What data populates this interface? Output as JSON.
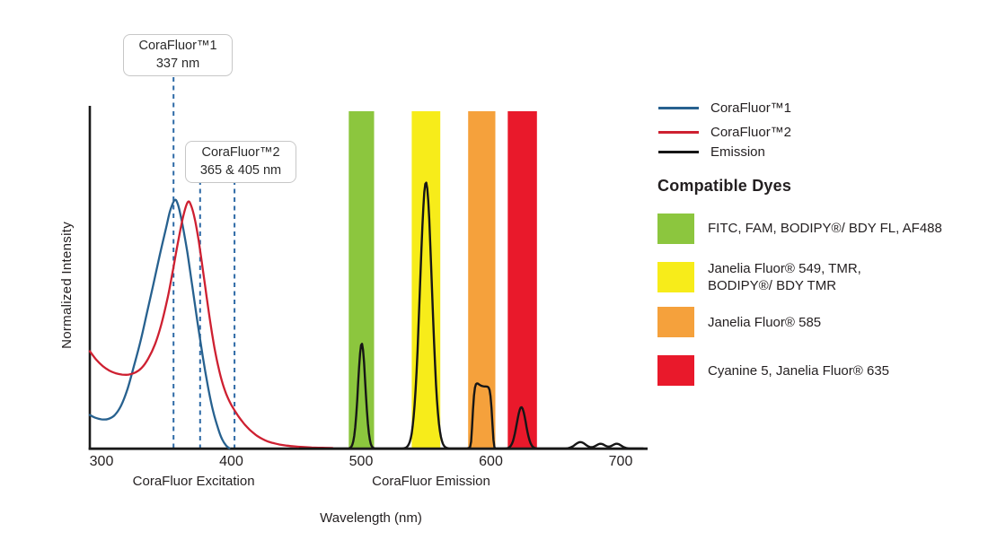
{
  "chart_data": {
    "type": "line",
    "title": "",
    "xlabel": "Wavelength (nm)",
    "ylabel": "Normalized Intensity",
    "x_ticks": [
      300,
      400,
      500,
      600,
      700
    ],
    "xlim": [
      291,
      719
    ],
    "ylim": [
      0,
      1
    ],
    "grid": false,
    "x_section_labels": [
      {
        "label": "CoraFluor Excitation",
        "center_nm": 371
      },
      {
        "label": "CoraFluor Emission",
        "center_nm": 554
      }
    ],
    "annotations": [
      {
        "title": "CoraFluor™1",
        "subtitle": "337 nm",
        "dashed_lines_nm": [
          355.5
        ]
      },
      {
        "title": "CoraFluor™2",
        "subtitle": "365 & 405 nm",
        "dashed_lines_nm": [
          376,
          402.5
        ]
      }
    ],
    "dashed_line_color": "#2E6AA6",
    "filter_bands": [
      {
        "name": "green-band",
        "color": "#8CC63E",
        "range_nm": [
          490.5,
          510
        ]
      },
      {
        "name": "yellow-band",
        "color": "#F7EC1A",
        "range_nm": [
          539,
          561
        ]
      },
      {
        "name": "orange-band",
        "color": "#F5A13C",
        "range_nm": [
          582.5,
          603.5
        ]
      },
      {
        "name": "red-band",
        "color": "#E9192B",
        "range_nm": [
          613,
          635.5
        ]
      }
    ],
    "series": [
      {
        "name": "CoraFluor™1",
        "kind": "excitation",
        "color": "#27618F",
        "points": [
          [
            291,
            0.099
          ],
          [
            295,
            0.091
          ],
          [
            300,
            0.086
          ],
          [
            305,
            0.087
          ],
          [
            310,
            0.098
          ],
          [
            315,
            0.126
          ],
          [
            320,
            0.175
          ],
          [
            325,
            0.243
          ],
          [
            330,
            0.315
          ],
          [
            335,
            0.4
          ],
          [
            340,
            0.485
          ],
          [
            345,
            0.572
          ],
          [
            350,
            0.655
          ],
          [
            353,
            0.703
          ],
          [
            356.5,
            0.733
          ],
          [
            359,
            0.718
          ],
          [
            362,
            0.668
          ],
          [
            366,
            0.582
          ],
          [
            370,
            0.477
          ],
          [
            374,
            0.372
          ],
          [
            378,
            0.272
          ],
          [
            382,
            0.183
          ],
          [
            386,
            0.11
          ],
          [
            390,
            0.057
          ],
          [
            393,
            0.027
          ],
          [
            396,
            0.009
          ],
          [
            398.5,
            0.001
          ]
        ]
      },
      {
        "name": "CoraFluor™2",
        "kind": "excitation",
        "color": "#CE2031",
        "points": [
          [
            291,
            0.287
          ],
          [
            296,
            0.262
          ],
          [
            301,
            0.243
          ],
          [
            306,
            0.23
          ],
          [
            311,
            0.222
          ],
          [
            316,
            0.218
          ],
          [
            321,
            0.218
          ],
          [
            326,
            0.224
          ],
          [
            331,
            0.238
          ],
          [
            336,
            0.265
          ],
          [
            341,
            0.305
          ],
          [
            346,
            0.365
          ],
          [
            351,
            0.445
          ],
          [
            355,
            0.525
          ],
          [
            359,
            0.61
          ],
          [
            363,
            0.685
          ],
          [
            366.5,
            0.727
          ],
          [
            369,
            0.717
          ],
          [
            372,
            0.675
          ],
          [
            375,
            0.61
          ],
          [
            378,
            0.53
          ],
          [
            381,
            0.448
          ],
          [
            384,
            0.368
          ],
          [
            387,
            0.298
          ],
          [
            390,
            0.241
          ],
          [
            393,
            0.196
          ],
          [
            396,
            0.162
          ],
          [
            399,
            0.136
          ],
          [
            402,
            0.116
          ],
          [
            405,
            0.098
          ],
          [
            408,
            0.082
          ],
          [
            411,
            0.068
          ],
          [
            414,
            0.056
          ],
          [
            417,
            0.046
          ],
          [
            420,
            0.037
          ],
          [
            424,
            0.028
          ],
          [
            428,
            0.021
          ],
          [
            432,
            0.0165
          ],
          [
            437,
            0.012
          ],
          [
            442,
            0.009
          ],
          [
            448,
            0.0065
          ],
          [
            455,
            0.0045
          ],
          [
            462,
            0.003
          ],
          [
            470,
            0.002
          ],
          [
            478,
            0.0015
          ]
        ]
      },
      {
        "name": "Emission",
        "kind": "emission",
        "color": "#161616",
        "peaks": [
          {
            "center_nm": 500.5,
            "height": 0.31,
            "width_nm": 2.8,
            "shape": "gaussian"
          },
          {
            "center_nm": 550,
            "height": 0.785,
            "width_nm": 4.6,
            "shape": "gaussian"
          },
          {
            "center_nm": 593.5,
            "height": 0.183,
            "width_nm": 7.8,
            "shape": "flattop"
          },
          {
            "center_nm": 588,
            "height": 0.012,
            "width_nm": 2.5,
            "shape": "gaussian"
          },
          {
            "center_nm": 623.5,
            "height": 0.122,
            "width_nm": 3.5,
            "shape": "gaussian"
          },
          {
            "center_nm": 669,
            "height": 0.019,
            "width_nm": 4,
            "shape": "gaussian"
          },
          {
            "center_nm": 684.5,
            "height": 0.014,
            "width_nm": 3.5,
            "shape": "gaussian"
          },
          {
            "center_nm": 697,
            "height": 0.014,
            "width_nm": 3.5,
            "shape": "gaussian"
          }
        ]
      }
    ]
  },
  "legend": {
    "items": [
      {
        "label": "CoraFluor™1",
        "color": "#27618F"
      },
      {
        "label": "CoraFluor™2",
        "color": "#CE2031"
      },
      {
        "label": "Emission",
        "color": "#161616"
      }
    ]
  },
  "side_panel": {
    "title": "Compatible Dyes",
    "dyes": [
      {
        "name": "green-filter-dyes",
        "color": "#8CC63E",
        "lines": [
          "FITC, FAM, BODIPY®/ BDY FL, AF488"
        ]
      },
      {
        "name": "yellow-filter-dyes",
        "color": "#F7EC1A",
        "lines": [
          "Janelia Fluor® 549, TMR,",
          "BODIPY®/ BDY TMR"
        ]
      },
      {
        "name": "orange-filter-dyes",
        "color": "#F5A13C",
        "lines": [
          "Janelia Fluor® 585"
        ]
      },
      {
        "name": "red-filter-dyes",
        "color": "#E9192B",
        "lines": [
          "Cyanine 5, Janelia Fluor® 635"
        ]
      }
    ]
  }
}
